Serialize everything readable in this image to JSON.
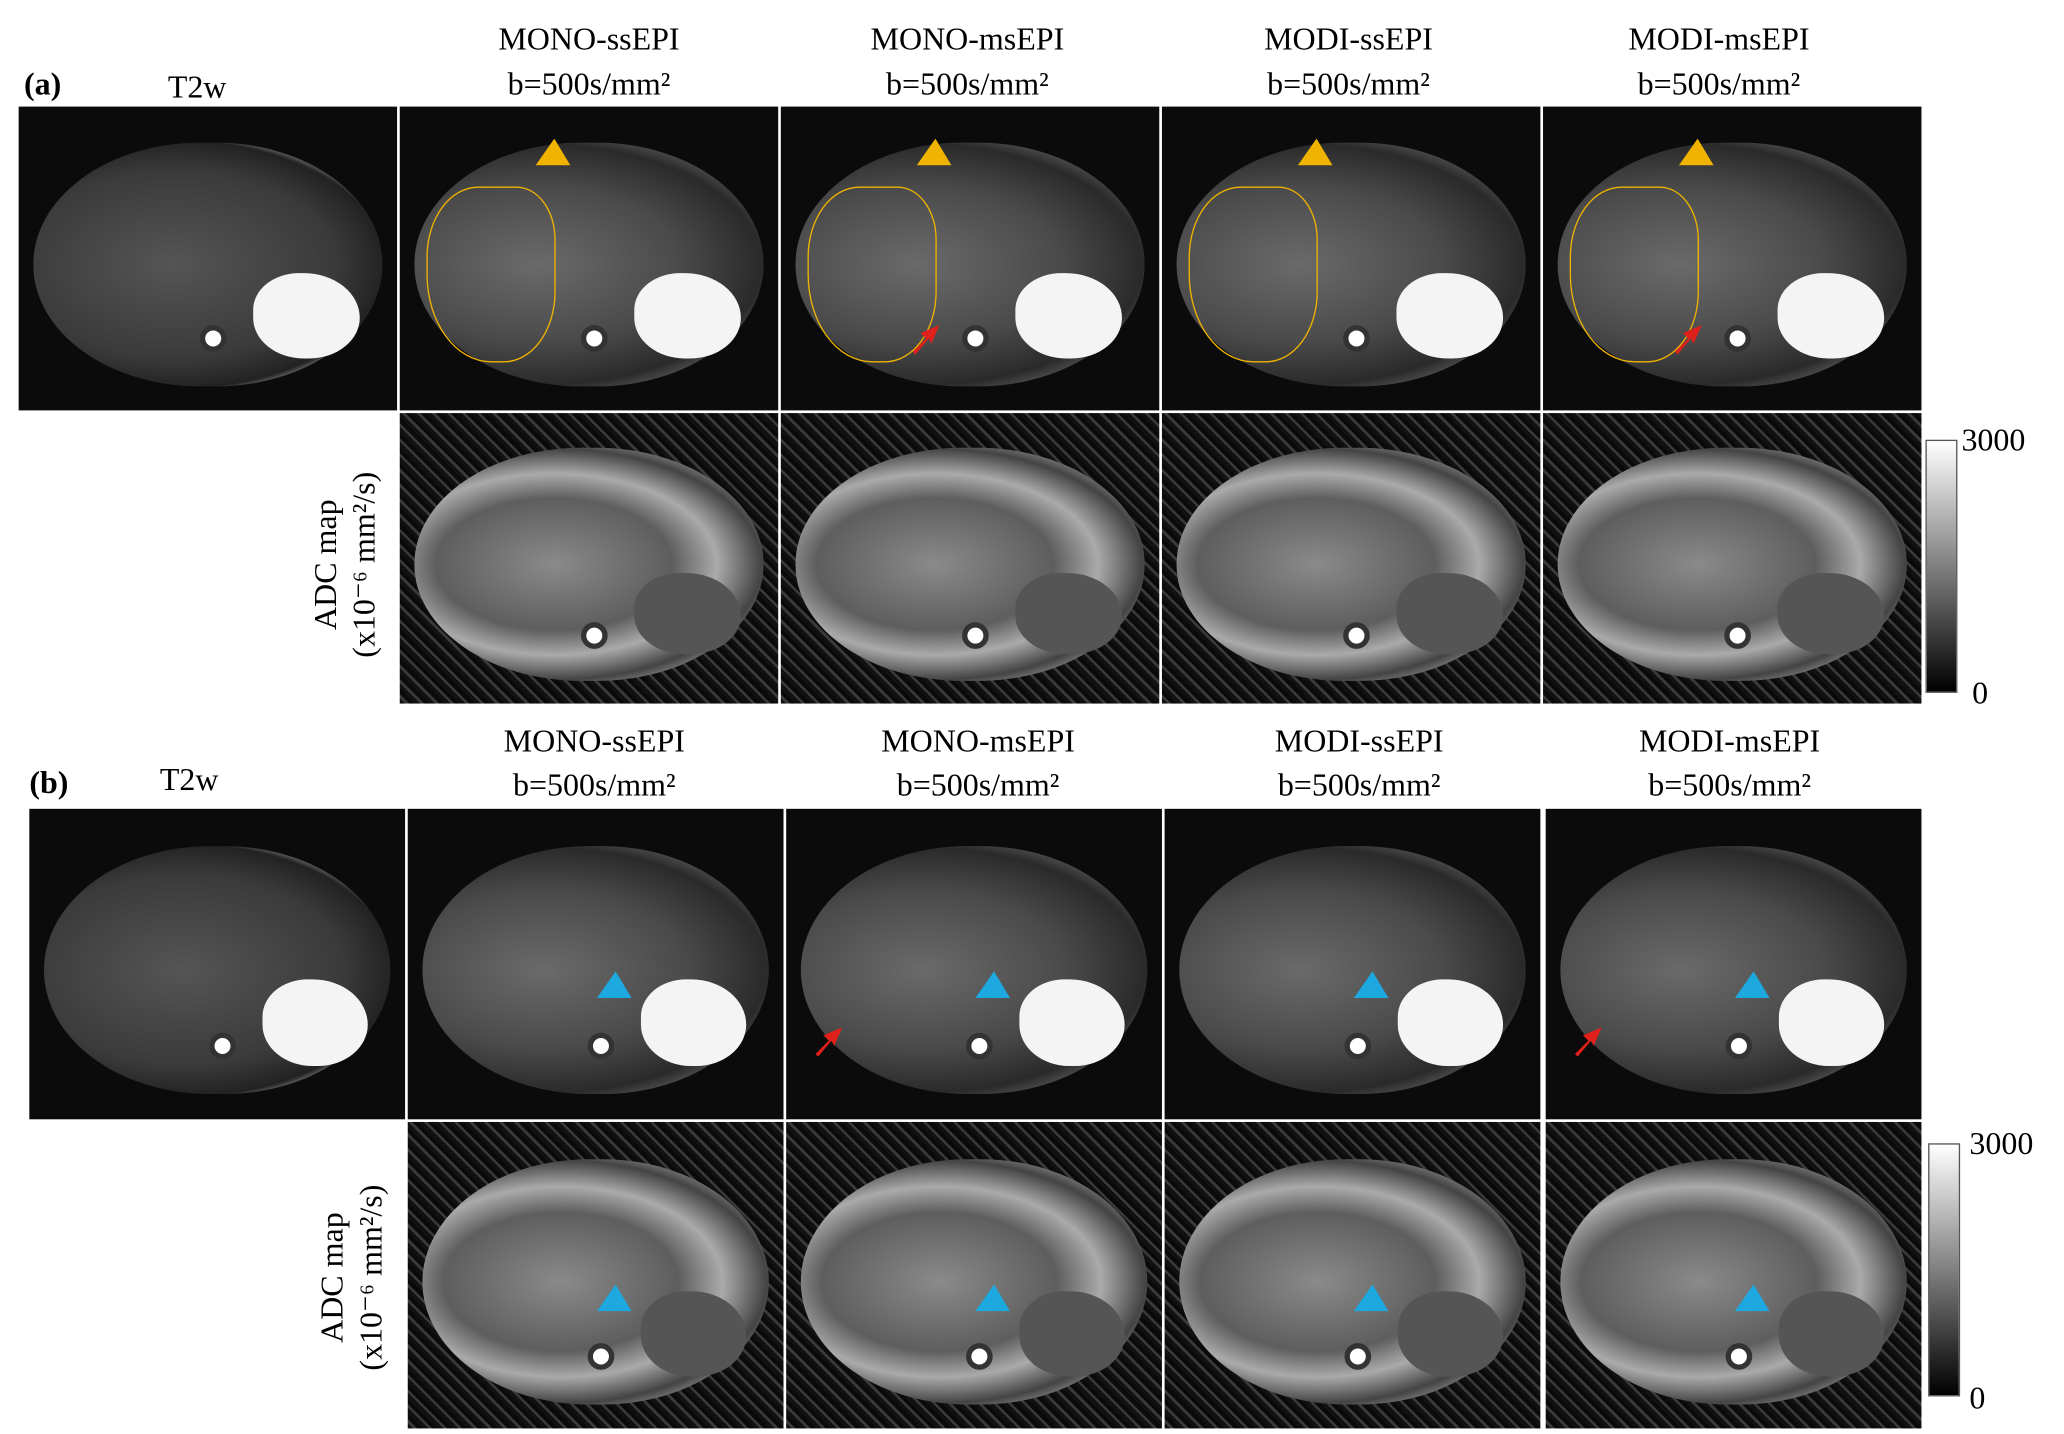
{
  "panels": [
    {
      "label": "(a)",
      "t2w_label": "T2w",
      "columns": [
        {
          "method": "MONO-ssEPI",
          "bvalue": "b=500s/mm²"
        },
        {
          "method": "MONO-msEPI",
          "bvalue": "b=500s/mm²"
        },
        {
          "method": "MODI-ssEPI",
          "bvalue": "b=500s/mm²"
        },
        {
          "method": "MODI-msEPI",
          "bvalue": "b=500s/mm²"
        }
      ],
      "adc_label": "ADC map",
      "adc_unit": "(x10⁻⁶ mm²/s)",
      "colorbar": {
        "max": "3000",
        "min": "0",
        "colormap": "gray"
      },
      "markers": {
        "arrowhead_color": "#f0b400",
        "arrow_color": "#e0201a"
      }
    },
    {
      "label": "(b)",
      "t2w_label": "T2w",
      "columns": [
        {
          "method": "MONO-ssEPI",
          "bvalue": "b=500s/mm²"
        },
        {
          "method": "MONO-msEPI",
          "bvalue": "b=500s/mm²"
        },
        {
          "method": "MODI-ssEPI",
          "bvalue": "b=500s/mm²"
        },
        {
          "method": "MODI-msEPI",
          "bvalue": "b=500s/mm²"
        }
      ],
      "adc_label": "ADC map",
      "adc_unit": "(x10⁻⁶ mm²/s)",
      "colorbar": {
        "max": "3000",
        "min": "0",
        "colormap": "gray"
      },
      "markers": {
        "arrowhead_color": "#1ea8e0",
        "arrow_color": "#e0201a"
      }
    }
  ]
}
